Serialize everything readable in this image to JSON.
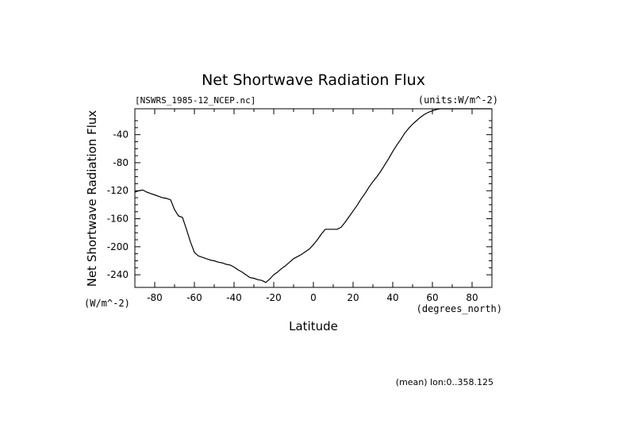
{
  "chart_data": {
    "type": "line",
    "title": "Net Shortwave Radiation Flux",
    "source_label": "[NSWRS_1985-12_NCEP.nc]",
    "units_label": "(units:W/m^-2)",
    "xlabel": "Latitude",
    "x_units": "(degrees_north)",
    "ylabel": "Net Shortwave Radiation Flux",
    "y_units": "(W/m^-2)",
    "footnote": "(mean) lon:0..358.125",
    "xlim": [
      -90,
      90
    ],
    "ylim": [
      -258,
      -3
    ],
    "x_ticks": [
      -80,
      -60,
      -40,
      -20,
      0,
      20,
      40,
      60,
      80
    ],
    "y_ticks": [
      -240,
      -200,
      -160,
      -120,
      -80,
      -40
    ],
    "grid": false,
    "series": [
      {
        "color": "#000000",
        "x": [
          -90,
          -88,
          -86,
          -84,
          -82,
          -80,
          -78,
          -76,
          -74,
          -72,
          -70,
          -68,
          -66,
          -64,
          -62,
          -60,
          -58,
          -56,
          -54,
          -52,
          -50,
          -48,
          -46,
          -44,
          -42,
          -40,
          -38,
          -36,
          -34,
          -32,
          -30,
          -28,
          -26,
          -24,
          -22,
          -20,
          -18,
          -16,
          -14,
          -12,
          -10,
          -8,
          -6,
          -4,
          -2,
          0,
          2,
          4,
          6,
          8,
          10,
          12,
          14,
          16,
          18,
          20,
          22,
          24,
          26,
          28,
          30,
          32,
          34,
          36,
          38,
          40,
          42,
          44,
          46,
          48,
          50,
          52,
          54,
          56,
          58,
          60,
          62,
          64,
          66,
          68,
          70,
          72,
          74,
          76,
          78,
          80,
          82,
          84,
          86,
          88,
          90
        ],
        "y": [
          -122,
          -120,
          -119,
          -122,
          -124,
          -126,
          -128,
          -130,
          -131,
          -133,
          -147,
          -156,
          -158,
          -175,
          -193,
          -208,
          -213,
          -215,
          -217,
          -219,
          -220,
          -222,
          -223,
          -225,
          -226,
          -229,
          -233,
          -236,
          -240,
          -244,
          -245,
          -247,
          -248,
          -251,
          -246,
          -240,
          -236,
          -231,
          -227,
          -222,
          -217,
          -214,
          -211,
          -207,
          -203,
          -197,
          -190,
          -182,
          -175,
          -175,
          -175,
          -175,
          -172,
          -165,
          -157,
          -149,
          -141,
          -132,
          -124,
          -115,
          -107,
          -100,
          -92,
          -83,
          -74,
          -64,
          -55,
          -47,
          -38,
          -31,
          -25,
          -20,
          -15,
          -11,
          -8,
          -6,
          -4,
          -3,
          -3,
          -3,
          -3,
          -3,
          -3,
          -3,
          -3,
          -3,
          -3,
          -3,
          -3,
          -3,
          -3
        ]
      }
    ]
  }
}
